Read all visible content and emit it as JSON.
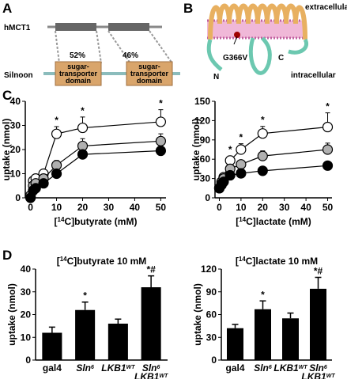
{
  "panel_labels": [
    "A",
    "B",
    "C",
    "D"
  ],
  "diagram_a": {
    "top_label": "hMCT1",
    "bottom_label": "Silnoon",
    "identity_left": "52%",
    "identity_right": "46%",
    "domain_line1": "sugar-",
    "domain_line2": "transporter",
    "domain_line3": "domain"
  },
  "diagram_b": {
    "extracellular": "extracellular",
    "intracellular": "intracellular",
    "n_term": "N",
    "c_term": "C",
    "mutation": "G366V"
  },
  "chart_data": [
    {
      "type": "line",
      "ylabel": "uptake (nmol)",
      "xlabel_parts": [
        "[",
        "14",
        "C]butyrate  (mM)"
      ],
      "xlim": [
        -2,
        52
      ],
      "xticks": [
        0,
        10,
        20,
        30,
        40,
        50
      ],
      "ylim": [
        0,
        40
      ],
      "yticks": [
        0,
        10,
        20,
        30,
        40
      ],
      "x": [
        0,
        1,
        2,
        5,
        10,
        20,
        50
      ],
      "series": [
        {
          "color": "#ffffff",
          "values": [
            0.5,
            7,
            8,
            10,
            26.5,
            29,
            31.5
          ],
          "errors": [
            0.5,
            1,
            1,
            1.5,
            3,
            4.5,
            5
          ],
          "value_labels": [
            null,
            null,
            null,
            null,
            "*",
            "*",
            "*"
          ]
        },
        {
          "color": "#b0b0b0",
          "values": [
            1,
            5,
            6,
            8,
            13.5,
            21.5,
            23.5
          ],
          "errors": [
            0.5,
            1,
            1,
            1,
            2,
            3,
            3
          ]
        },
        {
          "color": "#000000",
          "values": [
            0,
            3,
            4,
            6,
            10,
            18,
            19.5
          ],
          "errors": [
            0.3,
            0.5,
            0.5,
            1,
            1.5,
            1.5,
            1.5
          ]
        }
      ]
    },
    {
      "type": "line",
      "ylabel": "uptake (nmol)",
      "xlabel_parts": [
        "[",
        "14",
        "C]lactate  (mM)"
      ],
      "xlim": [
        -2,
        52
      ],
      "xticks": [
        0,
        10,
        20,
        30,
        40,
        50
      ],
      "ylim": [
        0,
        150
      ],
      "yticks": [
        0,
        30,
        60,
        90,
        120,
        150
      ],
      "x": [
        0,
        1,
        2,
        5,
        10,
        20,
        50
      ],
      "series": [
        {
          "color": "#ffffff",
          "values": [
            15,
            25,
            32,
            58,
            75,
            100,
            110
          ],
          "errors": [
            3,
            4,
            4,
            7,
            9,
            11,
            22
          ],
          "value_labels": [
            null,
            null,
            null,
            "*",
            "*",
            "*",
            "*"
          ]
        },
        {
          "color": "#b0b0b0",
          "values": [
            15,
            22,
            30,
            45,
            52,
            65,
            75
          ],
          "errors": [
            3,
            3,
            4,
            6,
            6,
            8,
            10
          ]
        },
        {
          "color": "#000000",
          "values": [
            15,
            20,
            25,
            35,
            38,
            42,
            50
          ],
          "errors": [
            2,
            3,
            3,
            4,
            4,
            5,
            6
          ]
        }
      ]
    },
    {
      "type": "bar",
      "ylabel": "uptake (nmol)",
      "title_parts": [
        "[",
        "14",
        "C]butyrate  10 mM"
      ],
      "ylim": [
        0,
        40
      ],
      "yticks": [
        0,
        10,
        20,
        30,
        40
      ],
      "color": "#000000",
      "category_parts": [
        [
          [
            "gal4",
            null
          ]
        ],
        [
          [
            "Sln",
            "6"
          ]
        ],
        [
          [
            "LKB1",
            "WT"
          ]
        ],
        [
          [
            "Sln",
            "6"
          ],
          [
            "LKB1",
            "WT"
          ]
        ]
      ],
      "values": [
        12,
        22,
        16,
        32
      ],
      "errors": [
        2.5,
        3.5,
        2,
        5
      ],
      "value_labels": [
        null,
        "*",
        null,
        "*#"
      ]
    },
    {
      "type": "bar",
      "ylabel": "uptake (nmol)",
      "title_parts": [
        "[",
        "14",
        "C]lactate  10 mM"
      ],
      "ylim": [
        0,
        120
      ],
      "yticks": [
        0,
        30,
        60,
        90,
        120
      ],
      "color": "#000000",
      "category_parts": [
        [
          [
            "gal4",
            null
          ]
        ],
        [
          [
            "Sln",
            "6"
          ]
        ],
        [
          [
            "LKB1",
            "WT"
          ]
        ],
        [
          [
            "Sln",
            "6"
          ],
          [
            "LKB1",
            "WT"
          ]
        ]
      ],
      "values": [
        42,
        67,
        55,
        94
      ],
      "errors": [
        5,
        11,
        7,
        15
      ],
      "value_labels": [
        null,
        "*",
        null,
        "*#"
      ]
    }
  ]
}
